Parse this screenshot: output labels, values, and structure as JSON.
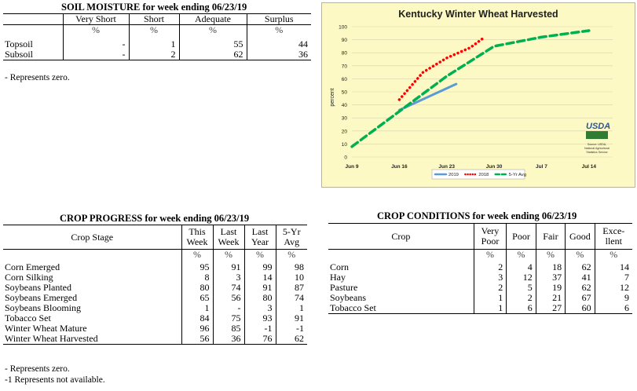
{
  "soil_moisture": {
    "title": "SOIL MOISTURE for week ending 06/23/19",
    "columns": [
      "Very Short",
      "Short",
      "Adequate",
      "Surplus"
    ],
    "units": [
      "%",
      "%",
      "%",
      "%"
    ],
    "rows": [
      {
        "label": "Topsoil",
        "values": [
          "-",
          "1",
          "55",
          "44"
        ]
      },
      {
        "label": "Subsoil",
        "values": [
          "-",
          "2",
          "62",
          "36"
        ]
      }
    ],
    "note": "- Represents zero."
  },
  "crop_progress": {
    "title": "CROP PROGRESS for week ending 06/23/19",
    "stage_header": "Crop Stage",
    "columns": [
      [
        "This",
        "Week"
      ],
      [
        "Last",
        "Week"
      ],
      [
        "Last",
        "Year"
      ],
      [
        "5-Yr",
        "Avg"
      ]
    ],
    "units": [
      "%",
      "%",
      "%",
      "%"
    ],
    "rows": [
      {
        "label": "Corn Emerged",
        "values": [
          "95",
          "91",
          "99",
          "98"
        ]
      },
      {
        "label": "Corn Silking",
        "values": [
          "8",
          "3",
          "14",
          "10"
        ]
      },
      {
        "label": "Soybeans Planted",
        "values": [
          "80",
          "74",
          "91",
          "87"
        ]
      },
      {
        "label": "Soybeans Emerged",
        "values": [
          "65",
          "56",
          "80",
          "74"
        ]
      },
      {
        "label": "Soybeans Blooming",
        "values": [
          "1",
          "-",
          "3",
          "1"
        ]
      },
      {
        "label": "Tobacco Set",
        "values": [
          "84",
          "75",
          "93",
          "91"
        ]
      },
      {
        "label": "Winter Wheat Mature",
        "values": [
          "96",
          "85",
          "-1",
          "-1"
        ]
      },
      {
        "label": "Winter Wheat Harvested",
        "values": [
          "56",
          "36",
          "76",
          "62"
        ]
      }
    ],
    "notes": [
      "- Represents zero.",
      "-1 Represents not available."
    ]
  },
  "crop_conditions": {
    "title": "CROP CONDITIONS for week ending 06/23/19",
    "crop_header": "Crop",
    "columns": [
      [
        "Very",
        "Poor"
      ],
      [
        "Poor"
      ],
      [
        "Fair"
      ],
      [
        "Good"
      ],
      [
        "Exce-",
        "llent"
      ]
    ],
    "units": [
      "%",
      "%",
      "%",
      "%",
      "%"
    ],
    "rows": [
      {
        "label": "Corn",
        "values": [
          "2",
          "4",
          "18",
          "62",
          "14"
        ]
      },
      {
        "label": "Hay",
        "values": [
          "3",
          "12",
          "37",
          "41",
          "7"
        ]
      },
      {
        "label": "Pasture",
        "values": [
          "2",
          "5",
          "19",
          "62",
          "12"
        ]
      },
      {
        "label": "Soybeans",
        "values": [
          "1",
          "2",
          "21",
          "67",
          "9"
        ]
      },
      {
        "label": "Tobacco Set",
        "values": [
          "1",
          "6",
          "27",
          "60",
          "6"
        ]
      }
    ]
  },
  "usda_logo": {
    "text": "USDA",
    "source_lines": [
      "Source: USDA,",
      "National Agricultural",
      "Statistics Service"
    ]
  },
  "chart_data": {
    "type": "line",
    "title": "Kentucky Winter Wheat Harvested",
    "ylabel": "percent",
    "xlabel": "",
    "ylim": [
      0,
      100
    ],
    "yticks": [
      0,
      10,
      20,
      30,
      40,
      50,
      60,
      70,
      80,
      90,
      100
    ],
    "xlim": [
      0,
      5.5
    ],
    "xticks": [
      {
        "x": 0,
        "label": "Jun 9"
      },
      {
        "x": 1,
        "label": "Jun 16"
      },
      {
        "x": 2,
        "label": "Jun 23"
      },
      {
        "x": 3,
        "label": "Jun 30"
      },
      {
        "x": 4,
        "label": "Jul 7"
      },
      {
        "x": 5,
        "label": "Jul 14"
      }
    ],
    "grid": true,
    "legend_position": "bottom",
    "series": [
      {
        "name": "2019",
        "color": "#5b9bd5",
        "style": "solid",
        "x": [
          1,
          2.2
        ],
        "y": [
          36,
          56
        ]
      },
      {
        "name": "2018",
        "color": "#ff0000",
        "style": "dotted",
        "x": [
          1,
          1.5,
          2,
          2.5,
          2.8
        ],
        "y": [
          44,
          65,
          76,
          84,
          92
        ]
      },
      {
        "name": "5-Yr Avg",
        "color": "#00b050",
        "style": "dashed",
        "x": [
          0,
          1,
          2,
          3,
          4,
          5
        ],
        "y": [
          8,
          35,
          62,
          85,
          92,
          97
        ]
      }
    ]
  }
}
